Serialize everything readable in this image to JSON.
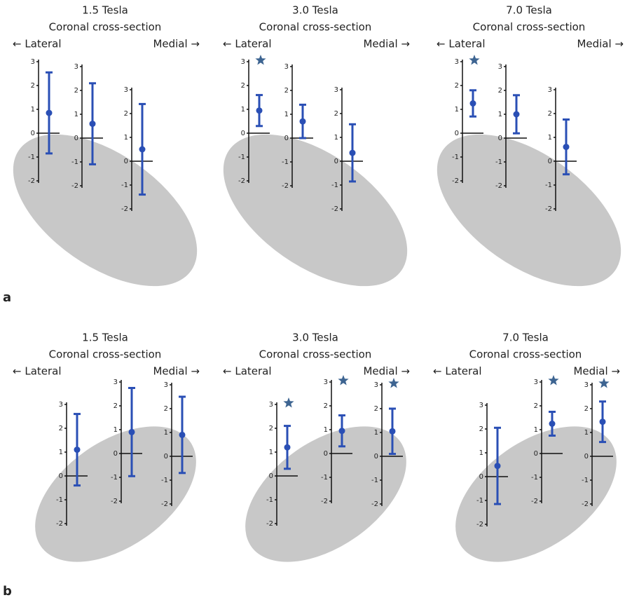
{
  "panel_labels": [
    "a",
    "b"
  ],
  "chart_data": [
    {
      "type": "errorbar",
      "title": "1.5 Tesla",
      "subtitle": "Coronal cross-section",
      "left_label": "← Lateral",
      "right_label": "Medial →",
      "ylim": [
        -2,
        3
      ],
      "yticks": [
        -2,
        -1,
        0,
        1,
        2,
        3
      ],
      "color": "#2a4fb5",
      "star_color": "#3d6491",
      "points": [
        {
          "value": 0.85,
          "error": 1.7,
          "significant": false
        },
        {
          "value": 0.6,
          "error": 1.7,
          "significant": false
        },
        {
          "value": 0.5,
          "error": 1.9,
          "significant": false
        }
      ]
    },
    {
      "type": "errorbar",
      "title": "3.0 Tesla",
      "subtitle": "Coronal cross-section",
      "left_label": "← Lateral",
      "right_label": "Medial →",
      "ylim": [
        -2,
        3
      ],
      "yticks": [
        -2,
        -1,
        0,
        1,
        2,
        3
      ],
      "color": "#2a4fb5",
      "star_color": "#3d6491",
      "points": [
        {
          "value": 0.95,
          "error": 0.65,
          "significant": true
        },
        {
          "value": 0.7,
          "error": 0.7,
          "significant": false
        },
        {
          "value": 0.35,
          "error": 1.2,
          "significant": false
        }
      ]
    },
    {
      "type": "errorbar",
      "title": "7.0 Tesla",
      "subtitle": "Coronal cross-section",
      "left_label": "← Lateral",
      "right_label": "Medial →",
      "ylim": [
        -2,
        3
      ],
      "yticks": [
        -2,
        -1,
        0,
        1,
        2,
        3
      ],
      "color": "#2a4fb5",
      "star_color": "#3d6491",
      "points": [
        {
          "value": 1.25,
          "error": 0.55,
          "significant": true
        },
        {
          "value": 1.0,
          "error": 0.8,
          "significant": false
        },
        {
          "value": 0.6,
          "error": 1.15,
          "significant": false
        }
      ]
    },
    {
      "type": "errorbar",
      "title": "1.5 Tesla",
      "subtitle": "Coronal cross-section",
      "left_label": "← Lateral",
      "right_label": "Medial →",
      "ylim": [
        -2,
        3
      ],
      "yticks": [
        -2,
        -1,
        0,
        1,
        2,
        3
      ],
      "color": "#2a4fb5",
      "star_color": "#3d6491",
      "points": [
        {
          "value": 1.1,
          "error": 1.5,
          "significant": false
        },
        {
          "value": 0.9,
          "error": 1.85,
          "significant": false
        },
        {
          "value": 0.9,
          "error": 1.6,
          "significant": false
        }
      ]
    },
    {
      "type": "errorbar",
      "title": "3.0 Tesla",
      "subtitle": "Coronal cross-section",
      "left_label": "← Lateral",
      "right_label": "Medial →",
      "ylim": [
        -2,
        3
      ],
      "yticks": [
        -2,
        -1,
        0,
        1,
        2,
        3
      ],
      "color": "#2a4fb5",
      "star_color": "#3d6491",
      "points": [
        {
          "value": 1.2,
          "error": 0.9,
          "significant": true
        },
        {
          "value": 0.95,
          "error": 0.65,
          "significant": true
        },
        {
          "value": 1.05,
          "error": 0.95,
          "significant": true
        }
      ]
    },
    {
      "type": "errorbar",
      "title": "7.0 Tesla",
      "subtitle": "Coronal cross-section",
      "left_label": "← Lateral",
      "right_label": "Medial →",
      "ylim": [
        -2,
        3
      ],
      "yticks": [
        -2,
        -1,
        0,
        1,
        2,
        3
      ],
      "color": "#2a4fb5",
      "star_color": "#3d6491",
      "points": [
        {
          "value": 0.45,
          "error": 1.6,
          "significant": false
        },
        {
          "value": 1.25,
          "error": 0.5,
          "significant": true
        },
        {
          "value": 1.45,
          "error": 0.85,
          "significant": true
        }
      ]
    }
  ]
}
